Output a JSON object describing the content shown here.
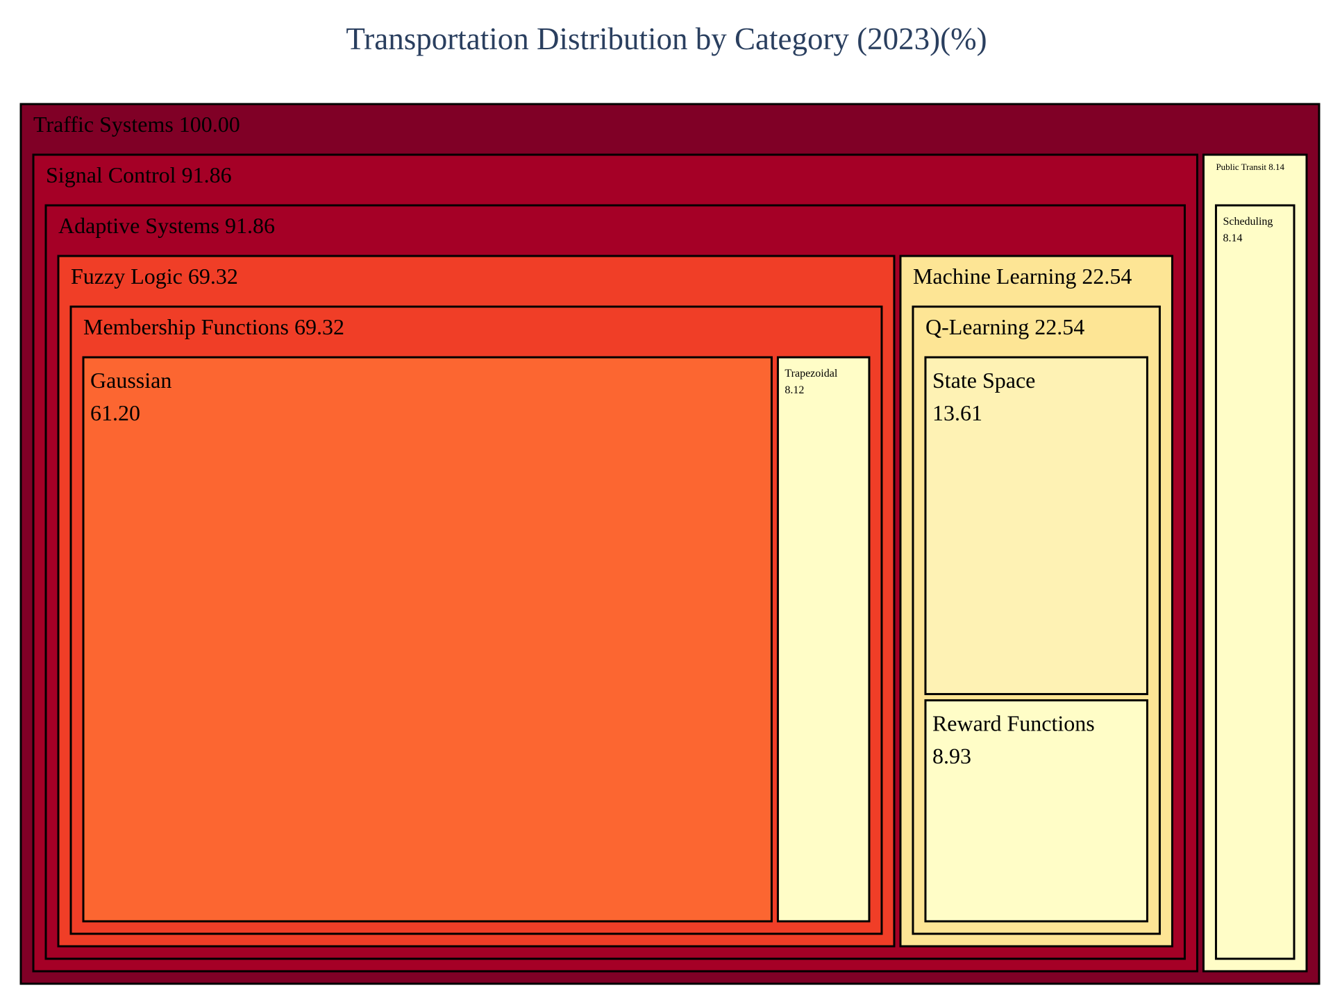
{
  "title": "Transportation Distribution by Category (2023)(%)",
  "chart_data": {
    "type": "treemap",
    "title": "Transportation Distribution by Category (2023)(%)",
    "value_format": "2 decimals",
    "root": {
      "name": "Traffic Systems",
      "value": 100.0,
      "color": "#800026",
      "children": [
        {
          "name": "Signal Control",
          "value": 91.86,
          "color": "#a50026",
          "children": [
            {
              "name": "Adaptive Systems",
              "value": 91.86,
              "color": "#a50026",
              "children": [
                {
                  "name": "Fuzzy Logic",
                  "value": 69.32,
                  "color": "#f03e27",
                  "children": [
                    {
                      "name": "Membership Functions",
                      "value": 69.32,
                      "color": "#f03e27",
                      "children": [
                        {
                          "name": "Gaussian",
                          "value": 61.2,
                          "color": "#fc6631"
                        },
                        {
                          "name": "Trapezoidal",
                          "value": 8.12,
                          "color": "#fffdc7"
                        }
                      ]
                    }
                  ]
                },
                {
                  "name": "Machine Learning",
                  "value": 22.54,
                  "color": "#fde595",
                  "children": [
                    {
                      "name": "Q-Learning",
                      "value": 22.54,
                      "color": "#fde595",
                      "children": [
                        {
                          "name": "State Space",
                          "value": 13.61,
                          "color": "#fef2b4"
                        },
                        {
                          "name": "Reward Functions",
                          "value": 8.93,
                          "color": "#fffdc7"
                        }
                      ]
                    }
                  ]
                }
              ]
            }
          ]
        },
        {
          "name": "Public Transit",
          "value": 8.14,
          "color": "#fffdc7",
          "children": [
            {
              "name": "Scheduling",
              "value": 8.14,
              "color": "#fffdc7"
            }
          ]
        }
      ]
    }
  }
}
